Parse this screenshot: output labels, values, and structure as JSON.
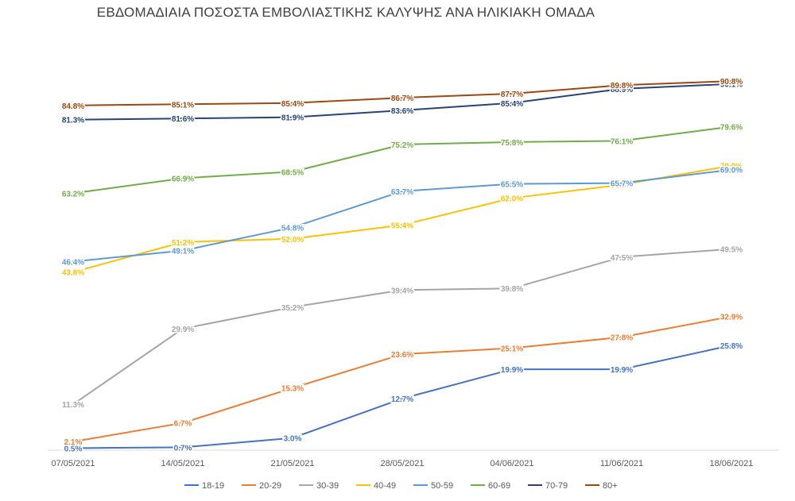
{
  "chart_data": {
    "type": "line",
    "title": "ΕΒΔΟΜΑΔΙΑΙΑ ΠΟΣΟΣΤΑ ΕΜΒΟΛΙΑΣΤΙΚΗΣ ΚΑΛΥΨΗΣ ΑΝΑ ΗΛΙΚΙΑΚΗ ΟΜΑΔΑ",
    "xlabel": "",
    "ylabel": "",
    "ylim": [
      0,
      100
    ],
    "grid": false,
    "legend_position": "bottom",
    "categories": [
      "07/05/2021",
      "14/05/2021",
      "21/05/2021",
      "28/05/2021",
      "04/06/2021",
      "11/06/2021",
      "18/06/2021"
    ],
    "series": [
      {
        "name": "18-19",
        "color": "#4472C4",
        "values": [
          0.5,
          0.7,
          3.0,
          12.7,
          19.9,
          19.9,
          25.8
        ],
        "labels": [
          "0.5%",
          "0.7%",
          "3.0%",
          "12.7%",
          "19.9%",
          "19.9%",
          "25.8%"
        ]
      },
      {
        "name": "20-29",
        "color": "#ED7D31",
        "values": [
          2.1,
          6.7,
          15.3,
          23.6,
          25.1,
          27.8,
          32.9
        ],
        "labels": [
          "2.1%",
          "6.7%",
          "15.3%",
          "23.6%",
          "25.1%",
          "27.8%",
          "32.9%"
        ]
      },
      {
        "name": "30-39",
        "color": "#A5A5A5",
        "values": [
          11.3,
          29.9,
          35.2,
          39.4,
          39.8,
          47.5,
          49.5
        ],
        "labels": [
          "11.3%",
          "29.9%",
          "35.2%",
          "39.4%",
          "39.8%",
          "47.5%",
          "49.5%"
        ]
      },
      {
        "name": "40-49",
        "color": "#FFC000",
        "values": [
          43.8,
          51.2,
          52.0,
          55.4,
          62.0,
          65.3,
          70.0
        ],
        "labels": [
          "43.8%",
          "51.2%",
          "52.0%",
          "55.4%",
          "62.0%",
          "65.3%",
          "70.0%"
        ]
      },
      {
        "name": "50-59",
        "color": "#5B9BD5",
        "values": [
          46.4,
          49.1,
          54.8,
          63.7,
          65.5,
          65.7,
          69.0
        ],
        "labels": [
          "46.4%",
          "49.1%",
          "54.8%",
          "63.7%",
          "65.5%",
          "65.7%",
          "69.0%"
        ]
      },
      {
        "name": "60-69",
        "color": "#70AD47",
        "values": [
          63.2,
          66.9,
          68.5,
          75.2,
          75.8,
          76.1,
          79.6
        ],
        "labels": [
          "63.2%",
          "66.9%",
          "68.5%",
          "75.2%",
          "75.8%",
          "76.1%",
          "79.6%"
        ]
      },
      {
        "name": "70-79",
        "color": "#264478",
        "values": [
          81.3,
          81.6,
          81.9,
          83.6,
          85.4,
          88.9,
          90.1
        ],
        "labels": [
          "81.3%",
          "81.6%",
          "81.9%",
          "83.6%",
          "85.4%",
          "88.9%",
          "90.1%"
        ]
      },
      {
        "name": "80+",
        "color": "#9E480E",
        "values": [
          84.8,
          85.1,
          85.4,
          86.7,
          87.7,
          89.8,
          90.8
        ],
        "labels": [
          "84.8%",
          "85.1%",
          "85.4%",
          "86.7%",
          "87.7%",
          "89.8%",
          "90.8%"
        ]
      }
    ]
  }
}
